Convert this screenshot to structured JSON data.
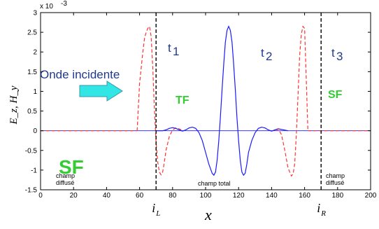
{
  "chart_data": {
    "type": "line",
    "xlabel": "x",
    "ylabel": "E_z, H_y",
    "y_exponent_label": "x 10",
    "y_exponent_power": "-3",
    "xlim": [
      0,
      200
    ],
    "ylim": [
      -1.5,
      3
    ],
    "x_ticks": [
      0,
      20,
      40,
      60,
      80,
      100,
      120,
      140,
      160,
      180,
      200
    ],
    "y_ticks": [
      -1.5,
      -1,
      -0.5,
      0,
      0.5,
      1,
      1.5,
      2,
      2.5,
      3
    ],
    "y_tick_labels": [
      "-1.5",
      "-1",
      "-0.5",
      "0",
      "0.5",
      "1",
      "1.5",
      "2",
      "2.5",
      "3"
    ],
    "boundaries": [
      {
        "x": 70,
        "label_main": "i",
        "label_sub": "L"
      },
      {
        "x": 170,
        "label_main": "i",
        "label_sub": "R"
      }
    ],
    "series": [
      {
        "style": "dashed",
        "color": "#ff3333",
        "x": [
          58.5,
          60,
          62,
          63,
          64,
          65,
          66,
          67,
          68,
          68.8,
          70,
          71,
          72,
          73,
          74,
          75,
          76,
          78,
          80,
          82,
          84,
          86
        ],
        "y": [
          0,
          1.2,
          2.0,
          2.35,
          2.5,
          2.6,
          2.65,
          2.4,
          1.6,
          0.7,
          -0.3,
          -0.8,
          -1.05,
          -1.12,
          -1.05,
          -0.8,
          -0.5,
          -0.15,
          0.02,
          0.07,
          0.05,
          0
        ]
      },
      {
        "style": "solid",
        "color": "#1a1aff",
        "x": [
          70,
          74,
          76,
          78,
          80,
          82,
          84,
          86,
          88,
          90,
          92,
          94,
          96,
          98,
          100,
          102,
          104,
          105,
          106,
          107,
          108,
          109,
          110,
          111,
          112,
          113,
          114,
          115,
          116,
          117,
          118,
          119,
          120,
          121,
          122,
          123,
          124,
          125,
          126,
          128,
          130,
          132,
          134,
          136,
          138,
          140,
          142,
          144,
          150
        ],
        "y": [
          0,
          0,
          0.02,
          0.06,
          0.08,
          0.06,
          0.02,
          -0.01,
          0.02,
          0.07,
          0.09,
          0.06,
          -0.05,
          -0.25,
          -0.55,
          -0.85,
          -1.08,
          -1.13,
          -1.05,
          -0.75,
          -0.25,
          0.35,
          1.05,
          1.7,
          2.25,
          2.55,
          2.65,
          2.55,
          2.25,
          1.7,
          1.05,
          0.35,
          -0.25,
          -0.75,
          -1.05,
          -1.13,
          -1.08,
          -0.85,
          -0.55,
          -0.25,
          -0.05,
          0.06,
          0.09,
          0.07,
          0.02,
          -0.01,
          0.02,
          0.05,
          0
        ]
      },
      {
        "style": "dashed",
        "color": "#ff3333",
        "x": [
          143,
          144,
          146,
          148,
          150,
          152,
          153,
          154,
          155,
          156,
          157,
          158,
          159,
          160,
          161,
          162
        ],
        "y": [
          0,
          0.05,
          -0.1,
          -0.5,
          -0.95,
          -1.15,
          -1.1,
          -0.85,
          -0.1,
          0.9,
          1.9,
          2.45,
          2.65,
          2.6,
          1.3,
          0
        ]
      },
      {
        "style": "dashed",
        "color": "#ff3333",
        "x": [
          0,
          58.5
        ],
        "y": [
          0,
          0
        ]
      },
      {
        "style": "dashed",
        "color": "#ff3333",
        "x": [
          162,
          200
        ],
        "y": [
          0,
          0
        ]
      }
    ],
    "baseline": {
      "color": "#3a3aff",
      "x": [
        0,
        200
      ],
      "y": [
        0,
        0
      ]
    },
    "annotations": {
      "t1": "t",
      "t1_sub": "1",
      "t2": "t",
      "t2_sub": "2",
      "t3": "t",
      "t3_sub": "3",
      "onde": "Onde incidente",
      "tf": "TF",
      "sf_right": "SF",
      "sf_left": "SF",
      "champ_diffuse_left_1": "champ",
      "champ_diffuse_left_2": "diffusé",
      "champ_total": "champ total",
      "champ_diffuse_right_1": "champ",
      "champ_diffuse_right_2": "diffusé"
    },
    "arrow_color": "#33e6e6"
  }
}
